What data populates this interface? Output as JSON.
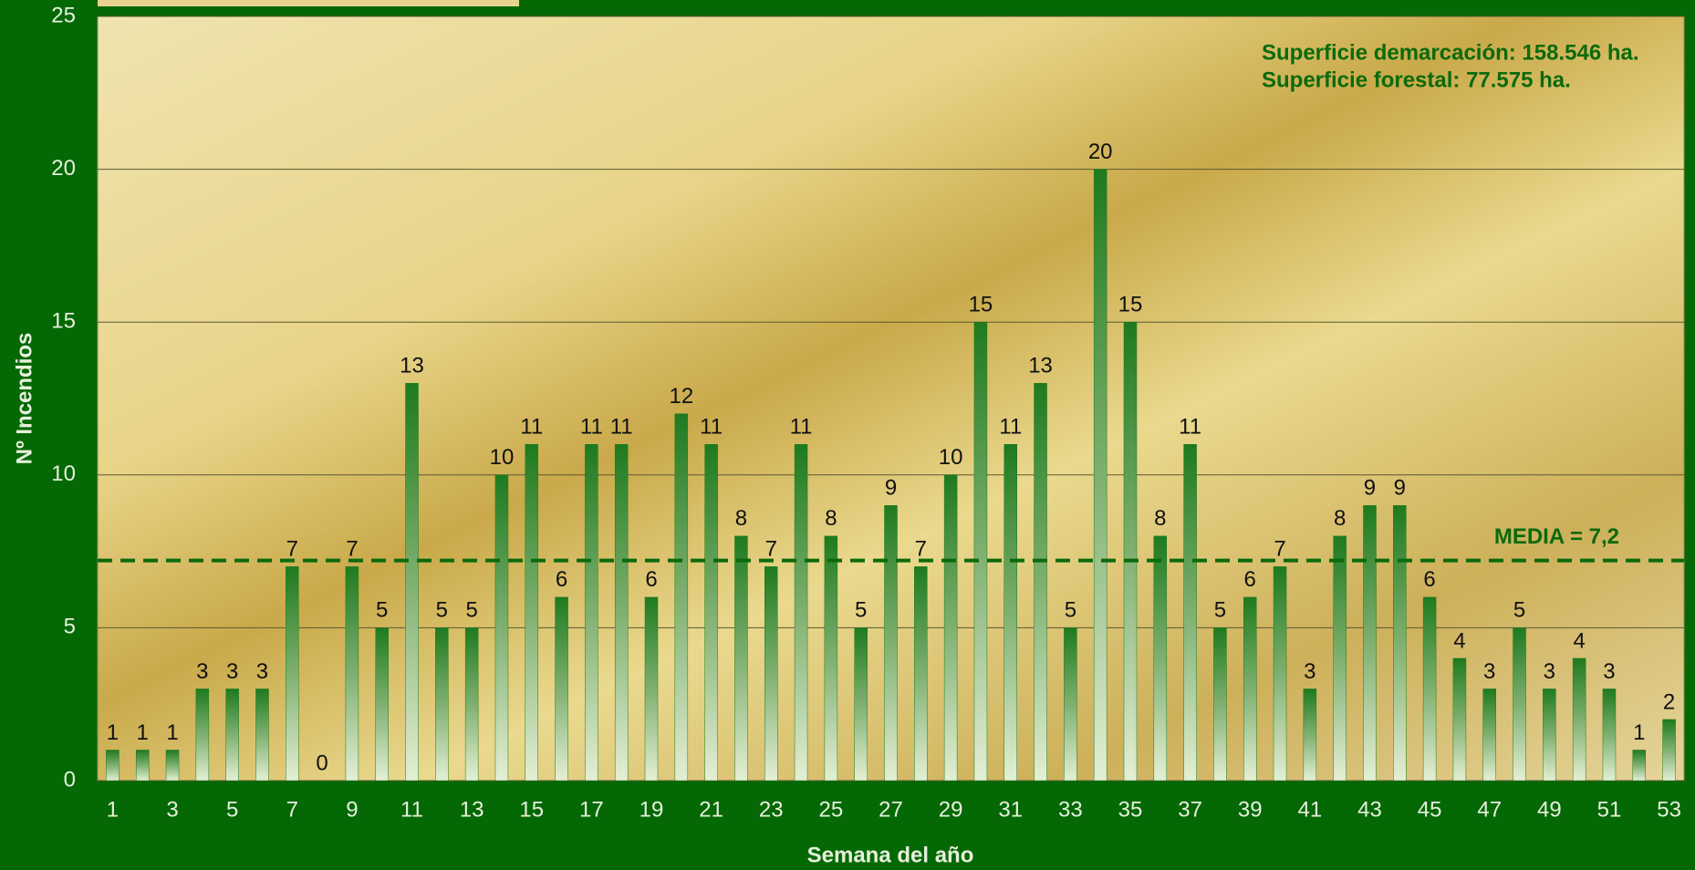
{
  "chart_data": {
    "type": "bar",
    "x_label": "Semana del año",
    "y_label": "Nº Incendios",
    "annotations": [
      "Superficie demarcación: 158.546 ha.",
      "Superficie forestal: 77.575 ha."
    ],
    "mean": {
      "value": 7.2,
      "label": "MEDIA = 7,2"
    },
    "categories": [
      "1",
      null,
      "3",
      null,
      "5",
      null,
      "7",
      null,
      "9",
      null,
      "11",
      null,
      "13",
      null,
      "15",
      null,
      "17",
      null,
      "19",
      null,
      "21",
      null,
      "23",
      null,
      "25",
      null,
      "27",
      null,
      "29",
      null,
      "31",
      null,
      "33",
      null,
      "35",
      null,
      "37",
      null,
      "39",
      null,
      "41",
      null,
      "43",
      null,
      "45",
      null,
      "47",
      null,
      "49",
      null,
      "51",
      null,
      "53"
    ],
    "values": [
      1,
      1,
      1,
      3,
      3,
      3,
      7,
      0,
      7,
      5,
      13,
      5,
      5,
      10,
      11,
      6,
      11,
      11,
      6,
      12,
      11,
      8,
      7,
      11,
      8,
      5,
      9,
      7,
      10,
      15,
      11,
      13,
      5,
      20,
      15,
      8,
      11,
      5,
      6,
      7,
      3,
      8,
      9,
      9,
      6,
      4,
      3,
      5,
      3,
      4,
      3,
      1,
      2
    ],
    "color": "#1e7a1e",
    "mean_color": "#0b6a0b",
    "ylim": [
      0,
      25
    ],
    "yticks": [
      0,
      5,
      10,
      15,
      20,
      25
    ],
    "grid": true
  }
}
